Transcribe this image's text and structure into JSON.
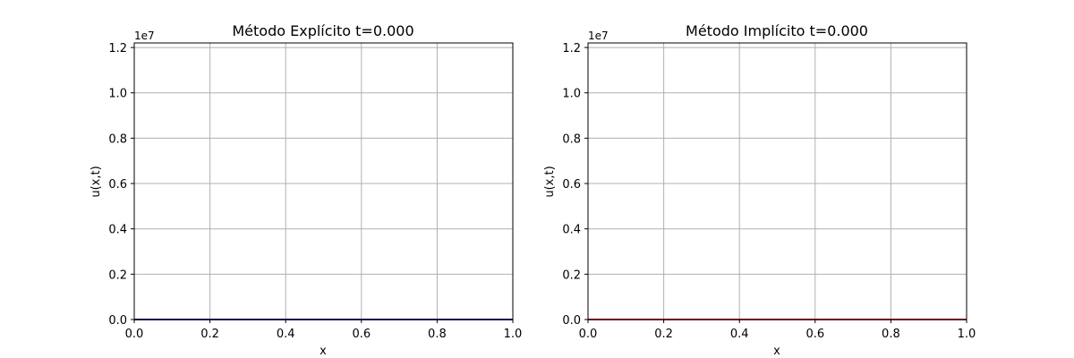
{
  "chart_data": [
    {
      "type": "line",
      "title": "Método Explícito t=0.000",
      "xlabel": "x",
      "ylabel": "u(x,t)",
      "offset_text": "1e7",
      "xlim": [
        0.0,
        1.0
      ],
      "ylim": [
        0.0,
        12200000
      ],
      "x_ticks": [
        0.0,
        0.2,
        0.4,
        0.6,
        0.8,
        1.0
      ],
      "x_tick_labels": [
        "0.0",
        "0.2",
        "0.4",
        "0.6",
        "0.8",
        "1.0"
      ],
      "y_ticks": [
        0,
        2000000,
        4000000,
        6000000,
        8000000,
        10000000,
        12000000
      ],
      "y_tick_labels": [
        "0.0",
        "0.2",
        "0.4",
        "0.6",
        "0.8",
        "1.0",
        "1.2"
      ],
      "grid": true,
      "series": [
        {
          "color": "#1f1f8f",
          "x": [
            0.0,
            0.2,
            0.4,
            0.6,
            0.8,
            1.0
          ],
          "y": [
            0,
            0,
            0,
            0,
            0,
            0
          ]
        }
      ]
    },
    {
      "type": "line",
      "title": "Método Implícito t=0.000",
      "xlabel": "x",
      "ylabel": "u(x,t)",
      "offset_text": "1e7",
      "xlim": [
        0.0,
        1.0
      ],
      "ylim": [
        0.0,
        12200000
      ],
      "x_ticks": [
        0.0,
        0.2,
        0.4,
        0.6,
        0.8,
        1.0
      ],
      "x_tick_labels": [
        "0.0",
        "0.2",
        "0.4",
        "0.6",
        "0.8",
        "1.0"
      ],
      "y_ticks": [
        0,
        2000000,
        4000000,
        6000000,
        8000000,
        10000000,
        12000000
      ],
      "y_tick_labels": [
        "0.0",
        "0.2",
        "0.4",
        "0.6",
        "0.8",
        "1.0",
        "1.2"
      ],
      "grid": true,
      "series": [
        {
          "color": "#d62728",
          "x": [
            0.0,
            0.2,
            0.4,
            0.6,
            0.8,
            1.0
          ],
          "y": [
            0,
            0,
            0,
            0,
            0,
            0
          ]
        }
      ]
    }
  ]
}
